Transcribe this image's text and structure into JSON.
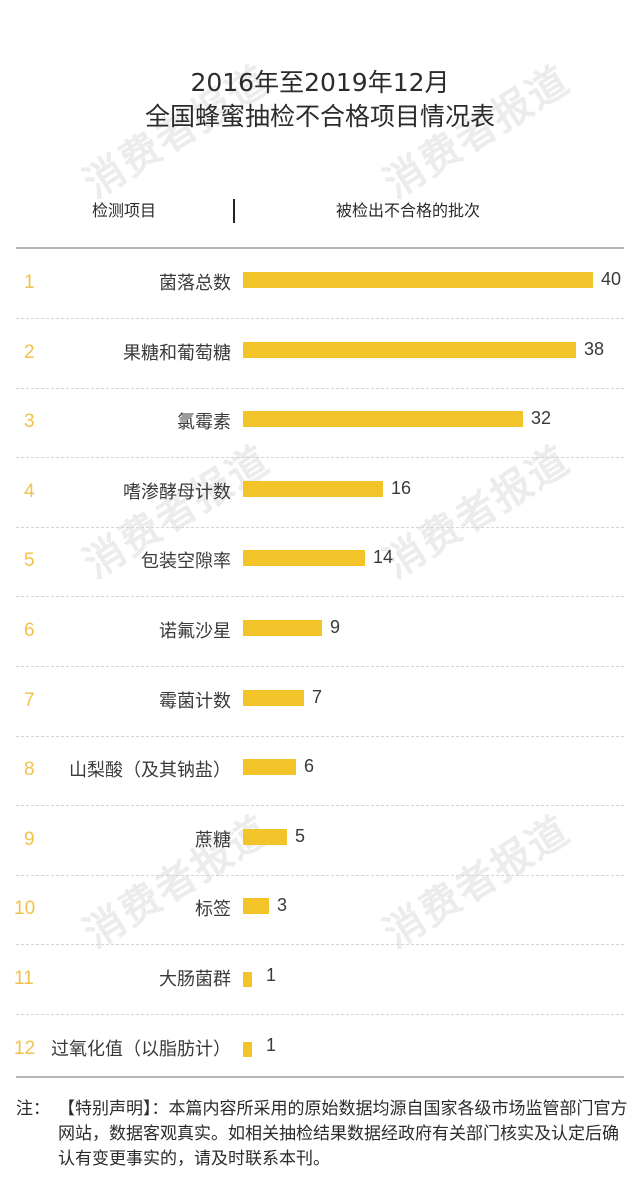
{
  "title": {
    "line1": "2016年至2019年12月",
    "line2": "全国蜂蜜抽检不合格项目情况表"
  },
  "watermark": "消费者报道",
  "columns": {
    "item": "检测项目",
    "count": "被检出不合格的批次"
  },
  "colors": {
    "bar": "#f2c42a",
    "rank": "#f0c24c",
    "text": "#3a3a3a",
    "watermark": "#ececec"
  },
  "rows": [
    {
      "rank": "1",
      "label": "菌落总数",
      "value": "40"
    },
    {
      "rank": "2",
      "label": "果糖和葡萄糖",
      "value": "38"
    },
    {
      "rank": "3",
      "label": "氯霉素",
      "value": "32"
    },
    {
      "rank": "4",
      "label": "嗜渗酵母计数",
      "value": "16"
    },
    {
      "rank": "5",
      "label": "包装空隙率",
      "value": "14"
    },
    {
      "rank": "6",
      "label": "诺氟沙星",
      "value": "9"
    },
    {
      "rank": "7",
      "label": "霉菌计数",
      "value": "7"
    },
    {
      "rank": "8",
      "label": "山梨酸（及其钠盐）",
      "value": "6"
    },
    {
      "rank": "9",
      "label": "蔗糖",
      "value": "5"
    },
    {
      "rank": "10",
      "label": "标签",
      "value": "3"
    },
    {
      "rank": "11",
      "label": "大肠菌群",
      "value": "1"
    },
    {
      "rank": "12",
      "label": "过氧化值（以脂肪计）",
      "value": "1"
    }
  ],
  "note": {
    "prefix": "注：",
    "text": "【特别声明】：本篇内容所采用的原始数据均源自国家各级市场监管部门官方网站，数据客观真实。如相关抽检结果数据经政府有关部门核实及认定后确认有变更事实的，请及时联系本刊。"
  },
  "chart_data": {
    "type": "bar",
    "orientation": "horizontal",
    "title": "2016年至2019年12月 全国蜂蜜抽检不合格项目情况表",
    "xlabel": "被检出不合格的批次",
    "ylabel": "检测项目",
    "categories": [
      "菌落总数",
      "果糖和葡萄糖",
      "氯霉素",
      "嗜渗酵母计数",
      "包装空隙率",
      "诺氟沙星",
      "霉菌计数",
      "山梨酸（及其钠盐）",
      "蔗糖",
      "标签",
      "大肠菌群",
      "过氧化值（以脂肪计）"
    ],
    "values": [
      40,
      38,
      32,
      16,
      14,
      9,
      7,
      6,
      5,
      3,
      1,
      1
    ],
    "xlim": [
      0,
      40
    ],
    "grid": false,
    "data_labels": true,
    "legend": "none"
  }
}
